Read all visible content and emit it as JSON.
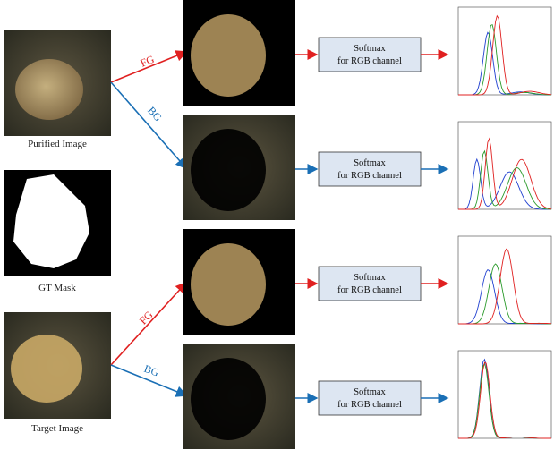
{
  "images": {
    "purified": "Purified Image",
    "mask": "GT Mask",
    "target": "Target Image"
  },
  "branches": [
    {
      "label": "FG"
    },
    {
      "label": "BG"
    },
    {
      "label": "FG"
    },
    {
      "label": "BG"
    }
  ],
  "boxes": [
    {
      "line1": "Softmax",
      "line2": "for RGB channel"
    },
    {
      "line1": "Softmax",
      "line2": "for RGB channel"
    },
    {
      "line1": "Softmax",
      "line2": "for RGB channel"
    },
    {
      "line1": "Softmax",
      "line2": "for RGB channel"
    }
  ]
}
